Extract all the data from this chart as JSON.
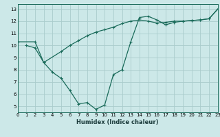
{
  "xlabel": "Humidex (Indice chaleur)",
  "bg_color": "#cce8e8",
  "grid_color": "#aacccc",
  "line_color": "#1a6b5a",
  "line1_x": [
    0,
    2,
    3,
    5,
    6,
    7,
    8,
    9,
    10,
    11,
    12,
    13,
    14,
    15,
    16,
    17,
    18,
    19,
    20,
    21,
    22,
    23
  ],
  "line1_y": [
    10.3,
    10.3,
    8.6,
    9.5,
    10.0,
    10.4,
    10.8,
    11.1,
    11.3,
    11.5,
    11.8,
    12.0,
    12.1,
    12.0,
    11.85,
    11.9,
    12.0,
    12.0,
    12.05,
    12.1,
    12.2,
    13.0
  ],
  "line2_x": [
    1,
    2,
    3,
    4,
    5,
    6,
    7,
    8,
    9,
    10,
    11,
    12,
    13,
    14,
    15,
    16,
    17,
    18,
    19,
    20,
    21,
    22,
    23
  ],
  "line2_y": [
    10.0,
    9.8,
    8.6,
    7.8,
    7.3,
    6.3,
    5.2,
    5.3,
    4.75,
    5.1,
    7.6,
    8.0,
    10.3,
    12.3,
    12.4,
    12.1,
    11.7,
    11.9,
    12.0,
    12.05,
    12.1,
    12.2,
    13.0
  ],
  "xlim": [
    0,
    23
  ],
  "ylim": [
    4.5,
    13.4
  ],
  "xticks": [
    0,
    1,
    2,
    3,
    4,
    5,
    6,
    7,
    8,
    9,
    10,
    11,
    12,
    13,
    14,
    15,
    16,
    17,
    18,
    19,
    20,
    21,
    22,
    23
  ],
  "yticks": [
    5,
    6,
    7,
    8,
    9,
    10,
    11,
    12,
    13
  ],
  "tick_fontsize": 5.0,
  "xlabel_fontsize": 6.0
}
